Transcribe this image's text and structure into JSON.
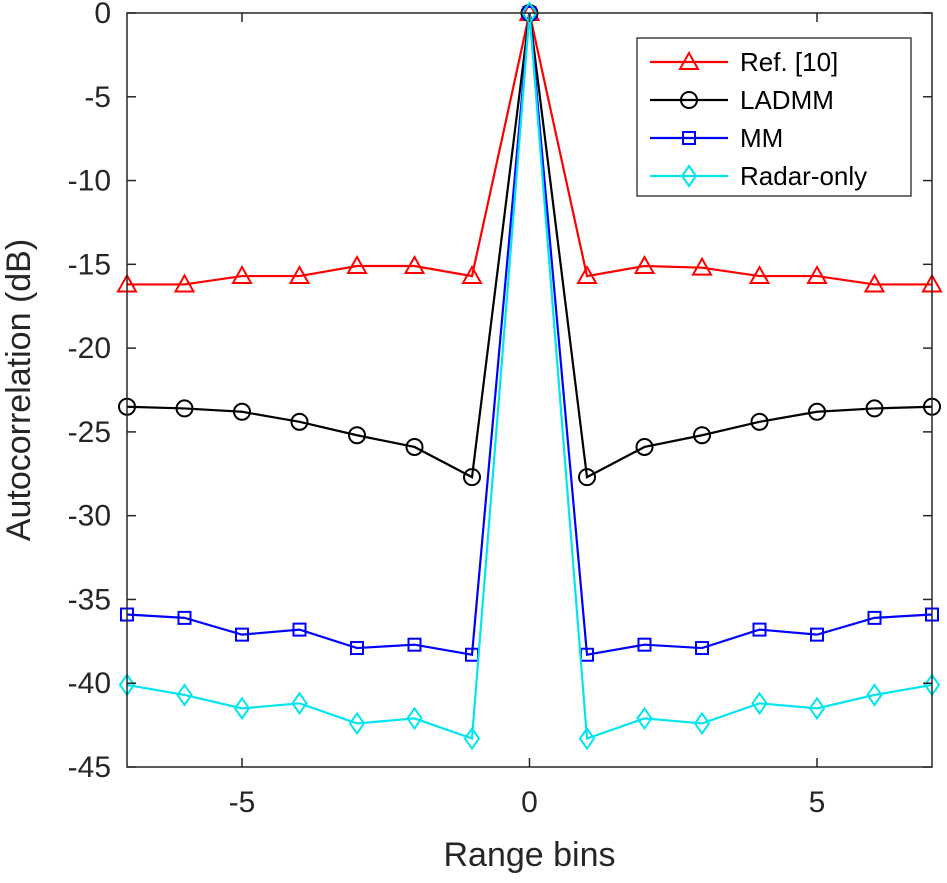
{
  "chart_data": {
    "type": "line",
    "title": "",
    "xlabel": "Range bins",
    "ylabel": "Autocorrelation (dB)",
    "xlim": [
      -7,
      7
    ],
    "ylim": [
      -45,
      0
    ],
    "xticks": [
      -5,
      0,
      5
    ],
    "yticks": [
      0,
      -5,
      -10,
      -15,
      -20,
      -25,
      -30,
      -35,
      -40,
      -45
    ],
    "grid": false,
    "legend_position": "top-right",
    "x": [
      -7,
      -6,
      -5,
      -4,
      -3,
      -2,
      -1,
      0,
      1,
      2,
      3,
      4,
      5,
      6,
      7
    ],
    "series": [
      {
        "name": "Ref. [10]",
        "color": "#ff0000",
        "marker": "triangle",
        "values": [
          -16.2,
          -16.2,
          -15.7,
          -15.7,
          -15.1,
          -15.1,
          -15.7,
          0,
          -15.7,
          -15.1,
          -15.2,
          -15.7,
          -15.7,
          -16.2,
          -16.2
        ]
      },
      {
        "name": "LADMM",
        "color": "#000000",
        "marker": "circle",
        "values": [
          -23.5,
          -23.6,
          -23.8,
          -24.4,
          -25.2,
          -25.9,
          -27.7,
          0,
          -27.7,
          -25.9,
          -25.2,
          -24.4,
          -23.8,
          -23.6,
          -23.5
        ]
      },
      {
        "name": "MM",
        "color": "#0000ff",
        "marker": "square",
        "values": [
          -35.9,
          -36.1,
          -37.1,
          -36.8,
          -37.9,
          -37.7,
          -38.3,
          0,
          -38.3,
          -37.7,
          -37.9,
          -36.8,
          -37.1,
          -36.1,
          -35.9
        ]
      },
      {
        "name": "Radar-only",
        "color": "#00e5ee",
        "marker": "diamond",
        "values": [
          -40.1,
          -40.7,
          -41.5,
          -41.2,
          -42.4,
          -42.1,
          -43.3,
          0,
          -43.3,
          -42.1,
          -42.4,
          -41.2,
          -41.5,
          -40.7,
          -40.1
        ]
      }
    ]
  }
}
